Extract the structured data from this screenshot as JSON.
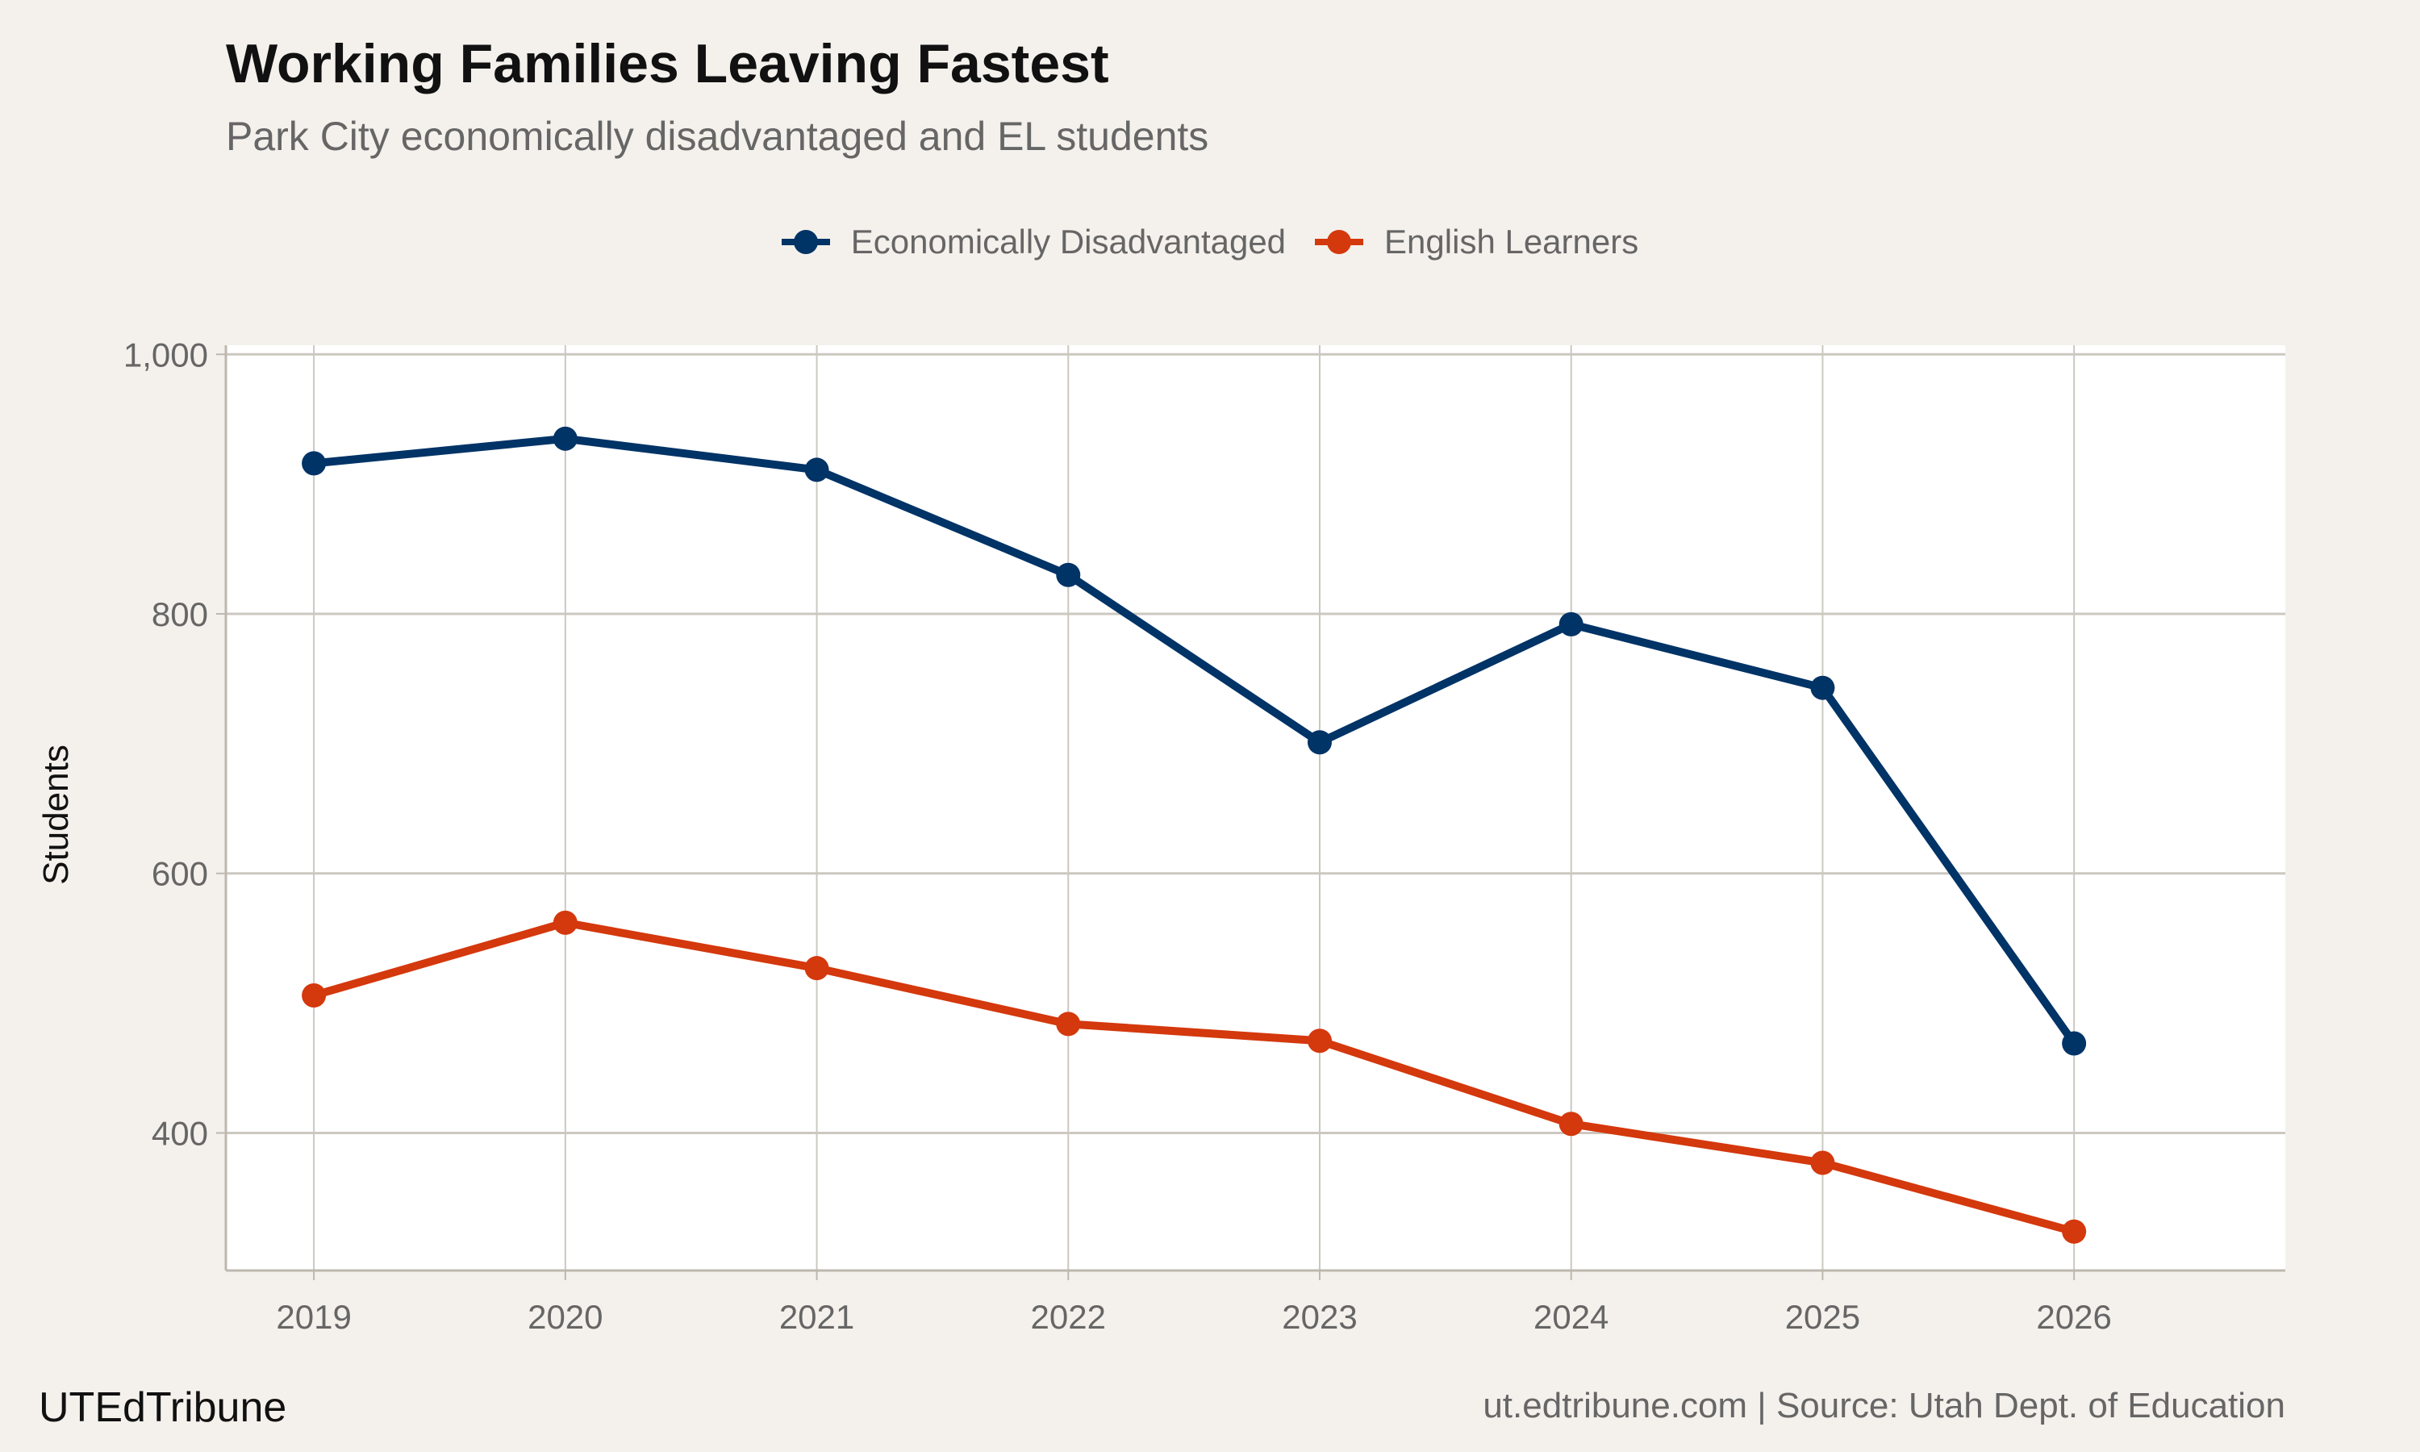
{
  "chart_data": {
    "type": "line",
    "title": "Working Families Leaving Fastest",
    "subtitle": "Park City economically disadvantaged and EL students",
    "xlabel": "",
    "ylabel": "Students",
    "x": [
      2019,
      2020,
      2021,
      2022,
      2023,
      2024,
      2025,
      2026
    ],
    "xlim": [
      2018.65,
      2026.84
    ],
    "ylim": [
      294,
      1007
    ],
    "yticks": [
      400,
      600,
      800,
      1000
    ],
    "ytick_labels": [
      "400",
      "600",
      "800",
      "1,000"
    ],
    "xtick_labels": [
      "2019",
      "2020",
      "2021",
      "2022",
      "2023",
      "2024",
      "2025",
      "2026"
    ],
    "grid": true,
    "legend_position": "top",
    "series": [
      {
        "name": "Economically Disadvantaged",
        "color": "#003366",
        "values": [
          916,
          935,
          911,
          830,
          701,
          792,
          743,
          469
        ]
      },
      {
        "name": "English Learners",
        "color": "#d4380d",
        "values": [
          506,
          562,
          527,
          484,
          471,
          407,
          377,
          324
        ]
      }
    ]
  },
  "caption": {
    "brand": "UTEdTribune",
    "source": "ut.edtribune.com | Source: Utah Dept. of Education"
  }
}
